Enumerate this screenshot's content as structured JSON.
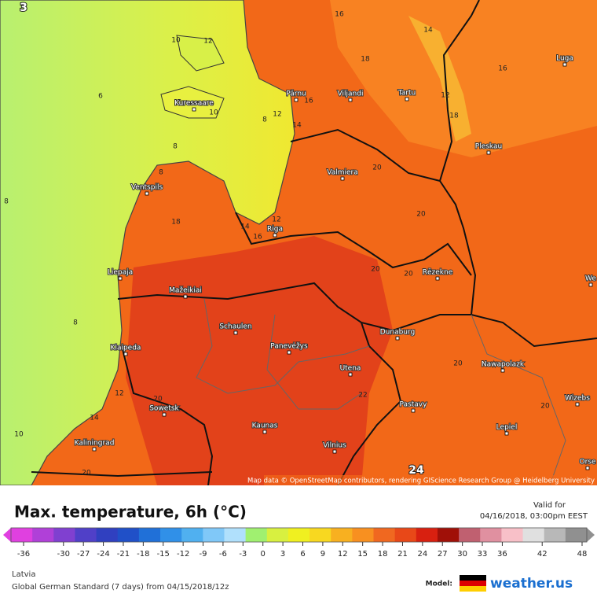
{
  "map": {
    "cities": [
      "Pärnu",
      "Viljandi",
      "Tartu",
      "Luga",
      "Kuressaare",
      "Pleskau",
      "Valmiera",
      "Ventspils",
      "Riga",
      "Liepaja",
      "Rēzekne",
      "Mažeikiai",
      "Schaulen",
      "Panevėžys",
      "Dunaburg",
      "Klaipeda",
      "Utena",
      "Nawapolazk",
      "Wizebs",
      "Sowetsk",
      "Pastavy",
      "Kaunas",
      "Lepiel",
      "Kaliningrad",
      "Vilnius",
      "Orse",
      "We"
    ],
    "contour_labels": [
      "16",
      "14",
      "18",
      "16",
      "10",
      "12",
      "6",
      "10",
      "8",
      "12",
      "16",
      "14",
      "12",
      "18",
      "8",
      "8",
      "18",
      "20",
      "20",
      "14",
      "12",
      "16",
      "20",
      "20",
      "8",
      "20",
      "22",
      "20",
      "12",
      "14",
      "10",
      "20",
      "20",
      "8"
    ],
    "highlight_labels": [
      "3",
      "24"
    ],
    "attribution": "Map data © OpenStreetMap contributors, rendering GIScience Research Group @ Heidelberg University"
  },
  "footer": {
    "title": "Max. temperature, 6h (°C)",
    "valid_label": "Valid for",
    "valid_time": "04/16/2018, 03:00pm EEST",
    "region": "Latvia",
    "model_run": "Global German Standard (7 days) from 04/15/2018/12z",
    "model_label": "Model:",
    "brand": "weather.us"
  },
  "legend": {
    "ticks": [
      -36,
      -30,
      -27,
      -24,
      -21,
      -18,
      -15,
      -12,
      -9,
      -6,
      -3,
      0,
      3,
      6,
      9,
      12,
      15,
      18,
      21,
      24,
      27,
      30,
      33,
      36,
      42,
      48
    ],
    "colors": [
      "#e040e0",
      "#b040d8",
      "#8040d0",
      "#5040c8",
      "#3040c0",
      "#2050c8",
      "#2070d8",
      "#3090e8",
      "#50b0f0",
      "#80c8f8",
      "#b0e0fc",
      "#a0f070",
      "#d8f040",
      "#f0f020",
      "#f8d820",
      "#f8b020",
      "#f89020",
      "#f06820",
      "#e84818",
      "#d82010",
      "#a01008",
      "#c06070",
      "#e090a0",
      "#f8c0c8",
      "#e0e0e0",
      "#b8b8b8",
      "#909090"
    ]
  }
}
